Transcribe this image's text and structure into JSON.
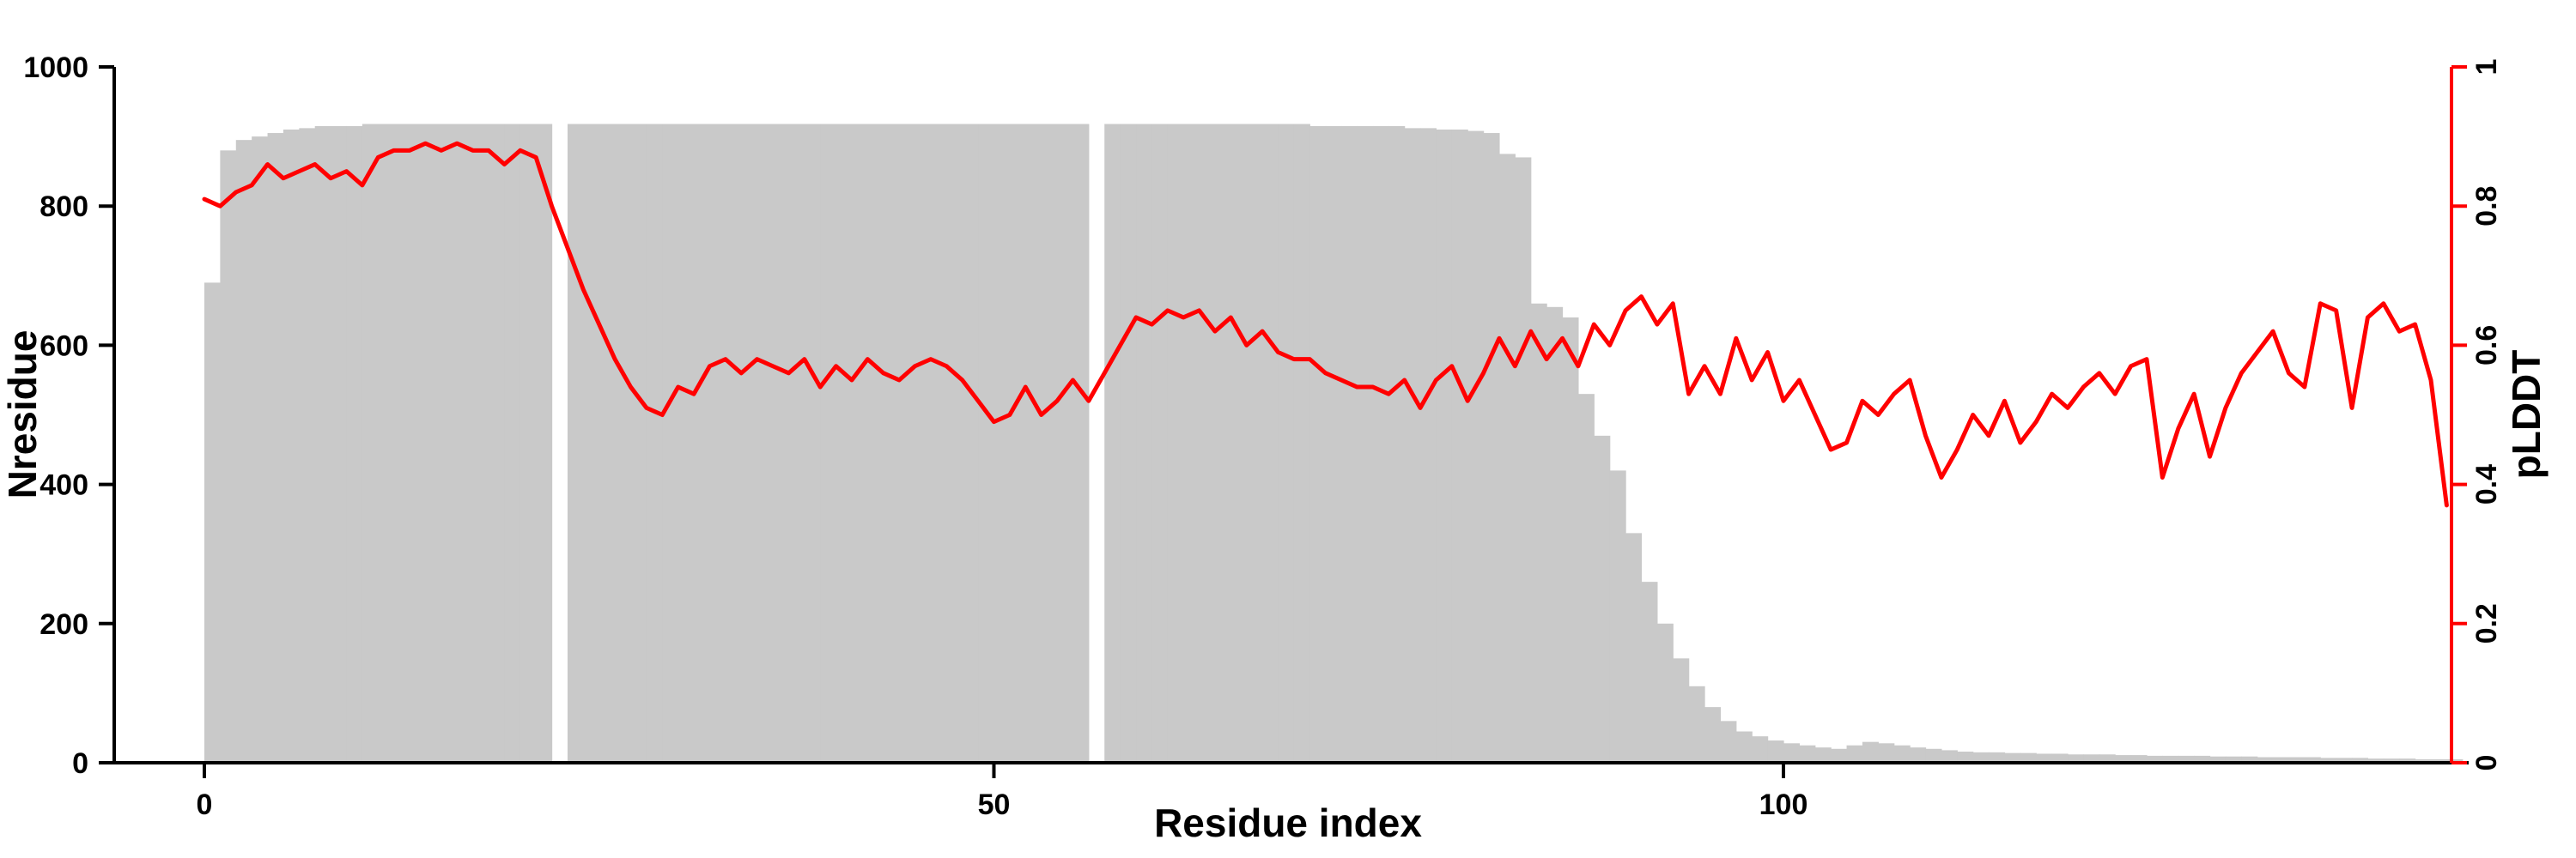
{
  "chart_data": {
    "type": "bar",
    "title": "",
    "xlabel": "Residue index",
    "ylabel_left": "Nresidue",
    "ylabel_right": "pLDDT",
    "x_start": 0,
    "x_ticks": [
      0,
      50,
      100
    ],
    "x_range": [
      0,
      142
    ],
    "y_left_ticks": [
      0,
      200,
      400,
      600,
      800,
      1000
    ],
    "y_left_range": [
      0,
      1000
    ],
    "y_right_ticks": [
      0,
      0.2,
      0.4,
      0.6,
      0.8,
      1
    ],
    "y_right_range": [
      0,
      1
    ],
    "bar_color": "#c9c9c9",
    "line_color": "#ff0000",
    "axis_color": "#000000",
    "grid": false,
    "legend_position": "none",
    "series": [
      {
        "name": "Nresidue",
        "type": "bar",
        "axis": "left",
        "values": [
          690,
          880,
          895,
          900,
          905,
          910,
          912,
          915,
          915,
          915,
          918,
          918,
          918,
          918,
          918,
          918,
          918,
          918,
          918,
          918,
          918,
          918,
          0,
          918,
          918,
          918,
          918,
          918,
          918,
          918,
          918,
          918,
          918,
          918,
          918,
          918,
          918,
          918,
          918,
          918,
          918,
          918,
          918,
          918,
          918,
          918,
          918,
          918,
          918,
          918,
          918,
          918,
          918,
          918,
          918,
          918,
          0,
          918,
          918,
          918,
          918,
          918,
          918,
          918,
          918,
          918,
          918,
          918,
          918,
          918,
          915,
          915,
          915,
          915,
          915,
          915,
          912,
          912,
          910,
          910,
          908,
          905,
          875,
          870,
          660,
          655,
          640,
          530,
          470,
          420,
          330,
          260,
          200,
          150,
          110,
          80,
          60,
          45,
          38,
          32,
          28,
          25,
          22,
          20,
          25,
          30,
          28,
          25,
          22,
          20,
          18,
          16,
          15,
          15,
          14,
          14,
          13,
          13,
          12,
          12,
          12,
          11,
          11,
          10,
          10,
          10,
          10,
          9,
          9,
          9,
          8,
          8,
          8,
          8,
          7,
          7,
          7,
          6,
          6,
          6,
          5,
          5,
          5
        ]
      },
      {
        "name": "pLDDT",
        "type": "line",
        "axis": "right",
        "values": [
          0.81,
          0.8,
          0.82,
          0.83,
          0.86,
          0.84,
          0.85,
          0.86,
          0.84,
          0.85,
          0.83,
          0.87,
          0.88,
          0.88,
          0.89,
          0.88,
          0.89,
          0.88,
          0.88,
          0.86,
          0.88,
          0.87,
          0.8,
          0.74,
          0.68,
          0.63,
          0.58,
          0.54,
          0.51,
          0.5,
          0.54,
          0.53,
          0.57,
          0.58,
          0.56,
          0.58,
          0.57,
          0.56,
          0.58,
          0.54,
          0.57,
          0.55,
          0.58,
          0.56,
          0.55,
          0.57,
          0.58,
          0.57,
          0.55,
          0.52,
          0.49,
          0.5,
          0.54,
          0.5,
          0.52,
          0.55,
          0.52,
          0.56,
          0.6,
          0.64,
          0.63,
          0.65,
          0.64,
          0.65,
          0.62,
          0.64,
          0.6,
          0.62,
          0.59,
          0.58,
          0.58,
          0.56,
          0.55,
          0.54,
          0.54,
          0.53,
          0.55,
          0.51,
          0.55,
          0.57,
          0.52,
          0.56,
          0.61,
          0.57,
          0.62,
          0.58,
          0.61,
          0.57,
          0.63,
          0.6,
          0.65,
          0.67,
          0.63,
          0.66,
          0.53,
          0.57,
          0.53,
          0.61,
          0.55,
          0.59,
          0.52,
          0.55,
          0.5,
          0.45,
          0.46,
          0.52,
          0.5,
          0.53,
          0.55,
          0.47,
          0.41,
          0.45,
          0.5,
          0.47,
          0.52,
          0.46,
          0.49,
          0.53,
          0.51,
          0.54,
          0.56,
          0.53,
          0.57,
          0.58,
          0.41,
          0.48,
          0.53,
          0.44,
          0.51,
          0.56,
          0.59,
          0.62,
          0.56,
          0.54,
          0.66,
          0.65,
          0.51,
          0.64,
          0.66,
          0.62,
          0.63,
          0.55,
          0.37
        ]
      }
    ]
  }
}
